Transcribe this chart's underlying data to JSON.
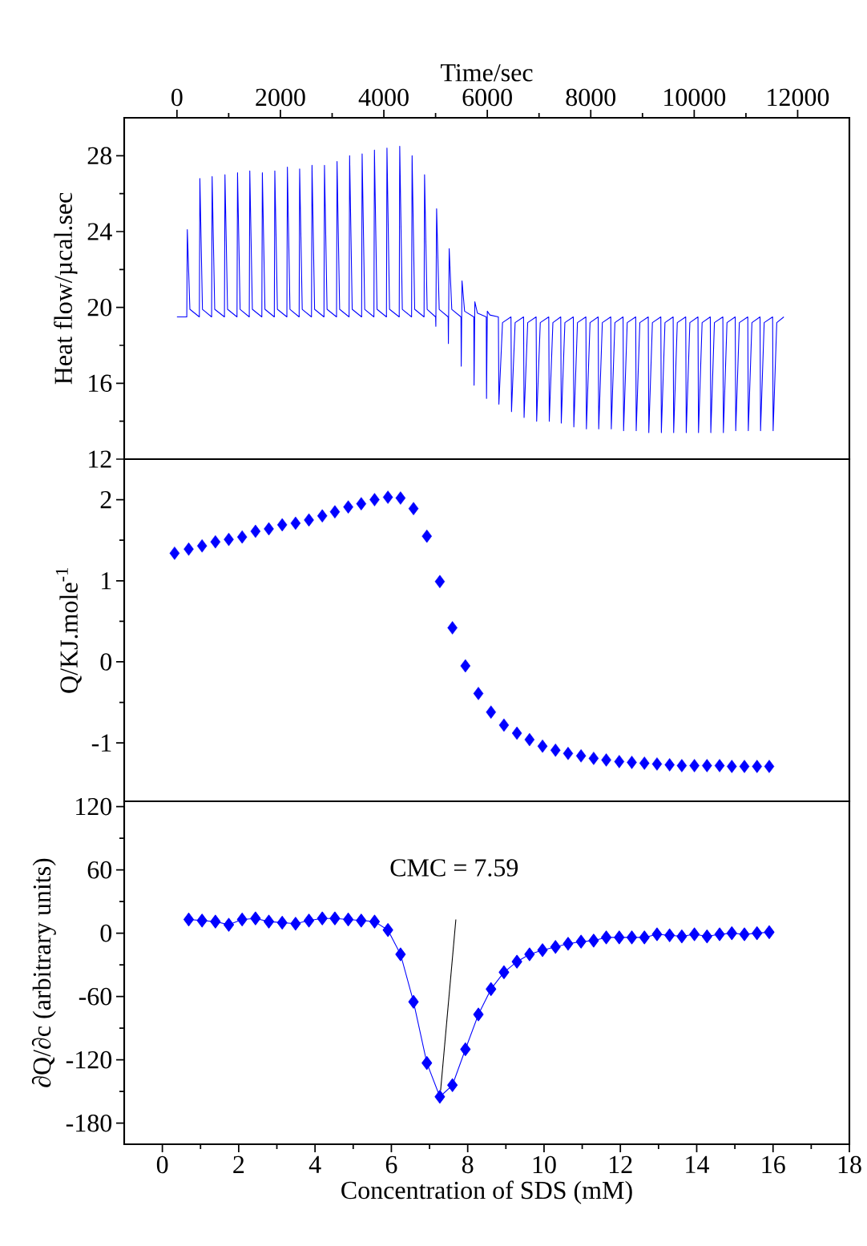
{
  "chart_data": [
    {
      "type": "line",
      "xlabel": "Time/sec",
      "ylabel": "Heat flow/µcal.sec",
      "xlim": [
        -1020,
        13000
      ],
      "xticks": [
        0,
        2000,
        4000,
        6000,
        8000,
        10000,
        12000
      ],
      "ylim": [
        12,
        30
      ],
      "yticks": [
        12,
        16,
        20,
        24,
        28
      ],
      "series": [
        {
          "color": "#0000ff",
          "x": [
            0,
            190,
            200,
            250,
            433,
            443,
            493,
            670,
            680,
            730,
            918,
            928,
            978,
            1161,
            1171,
            1221,
            1398,
            1408,
            1458,
            1641,
            1651,
            1701,
            1882,
            1892,
            1942,
            2125,
            2135,
            2185,
            2362,
            2372,
            2422,
            2601,
            2611,
            2661,
            2842,
            2852,
            2902,
            3085,
            3095,
            3145,
            3328,
            3338,
            3388,
            3570,
            3580,
            3630,
            3808,
            3818,
            3868,
            4050,
            4060,
            4110,
            4297,
            4307,
            4357,
            4536,
            4546,
            4596,
            4777,
            4787,
            4837,
            5000,
            5005,
            5020,
            5070,
            5243,
            5248,
            5263,
            5313,
            5491,
            5496,
            5511,
            5561,
            5739,
            5744,
            5759,
            5809,
            5980,
            5985,
            6000,
            6050,
            6214,
            6224,
            6294,
            6458,
            6468,
            6538,
            6701,
            6711,
            6781,
            6944,
            6954,
            7024,
            7188,
            7198,
            7268,
            7420,
            7430,
            7500,
            7663,
            7673,
            7743,
            7906,
            7916,
            7986,
            8144,
            8154,
            8224,
            8387,
            8397,
            8467,
            8625,
            8635,
            8705,
            8869,
            8879,
            8949,
            9112,
            9122,
            9192,
            9355,
            9365,
            9435,
            9593,
            9603,
            9673,
            9836,
            9846,
            9916,
            10073,
            10083,
            10153,
            10311,
            10321,
            10391,
            10554,
            10564,
            10634,
            10793,
            10803,
            10873,
            11036,
            11046,
            11116,
            11273,
            11283,
            11353,
            11516,
            11526,
            11596,
            11733
          ],
          "values": [
            19.5,
            19.5,
            24.1,
            19.9,
            19.5,
            26.8,
            19.9,
            19.5,
            26.9,
            19.9,
            19.5,
            27.0,
            19.9,
            19.5,
            27.1,
            19.9,
            19.5,
            27.2,
            19.9,
            19.5,
            27.1,
            19.9,
            19.5,
            27.2,
            19.9,
            19.5,
            27.4,
            19.9,
            19.5,
            27.3,
            19.9,
            19.5,
            27.5,
            19.9,
            19.5,
            27.5,
            19.9,
            19.5,
            27.7,
            19.9,
            19.5,
            28.0,
            19.9,
            19.5,
            28.1,
            19.9,
            19.5,
            28.3,
            19.9,
            19.5,
            28.4,
            19.9,
            19.5,
            28.5,
            19.9,
            19.5,
            28.0,
            19.9,
            19.5,
            27.0,
            19.9,
            19.5,
            19.0,
            25.2,
            19.9,
            19.5,
            18.1,
            23.1,
            19.9,
            19.5,
            16.9,
            21.4,
            19.8,
            19.5,
            15.9,
            20.3,
            19.7,
            19.5,
            15.2,
            19.8,
            19.6,
            19.5,
            14.9,
            19.2,
            19.5,
            14.5,
            19.2,
            19.5,
            14.2,
            19.2,
            19.5,
            14.0,
            19.2,
            19.5,
            14.0,
            19.2,
            19.5,
            13.9,
            19.2,
            19.5,
            13.7,
            19.2,
            19.5,
            13.6,
            19.2,
            19.5,
            13.6,
            19.2,
            19.5,
            13.6,
            19.2,
            19.5,
            13.5,
            19.2,
            19.5,
            13.5,
            19.2,
            19.5,
            13.4,
            19.2,
            19.5,
            13.4,
            19.2,
            19.5,
            13.4,
            19.2,
            19.5,
            13.4,
            19.2,
            19.5,
            13.4,
            19.2,
            19.5,
            13.4,
            19.2,
            19.5,
            13.4,
            19.2,
            19.5,
            13.5,
            19.2,
            19.5,
            13.5,
            19.2,
            19.5,
            13.5,
            19.2,
            19.5,
            13.5,
            19.2,
            19.5
          ]
        }
      ]
    },
    {
      "type": "scatter",
      "ylabel": "Q/KJ.mole$^{-1}$",
      "xlim": [
        -1,
        18
      ],
      "ylim": [
        -1.72,
        2.5
      ],
      "yticks": [
        -1,
        0,
        1,
        2
      ],
      "tick_labels": "y",
      "marker": "diamond",
      "series": [
        {
          "color": "#0000ff",
          "x": [
            0.32,
            0.69,
            1.04,
            1.39,
            1.74,
            2.09,
            2.44,
            2.79,
            3.14,
            3.49,
            3.84,
            4.19,
            4.52,
            4.87,
            5.21,
            5.56,
            5.91,
            6.24,
            6.58,
            6.93,
            7.27,
            7.6,
            7.94,
            8.28,
            8.61,
            8.95,
            9.29,
            9.62,
            9.96,
            10.3,
            10.63,
            10.97,
            11.3,
            11.63,
            11.97,
            12.3,
            12.63,
            12.96,
            13.29,
            13.61,
            13.94,
            14.27,
            14.6,
            14.92,
            15.25,
            15.58,
            15.9
          ],
          "values": [
            1.34,
            1.39,
            1.43,
            1.48,
            1.51,
            1.54,
            1.61,
            1.64,
            1.69,
            1.71,
            1.75,
            1.8,
            1.85,
            1.91,
            1.95,
            2.0,
            2.03,
            2.02,
            1.89,
            1.55,
            0.99,
            0.42,
            -0.05,
            -0.39,
            -0.62,
            -0.78,
            -0.88,
            -0.96,
            -1.04,
            -1.09,
            -1.13,
            -1.16,
            -1.19,
            -1.21,
            -1.23,
            -1.24,
            -1.25,
            -1.26,
            -1.27,
            -1.28,
            -1.28,
            -1.28,
            -1.28,
            -1.29,
            -1.29,
            -1.29,
            -1.29
          ]
        }
      ]
    },
    {
      "type": "scatter",
      "xlabel": "Concentration of SDS (mM)",
      "ylabel": "∂Q/∂c (arbitrary units)",
      "xlim": [
        -1,
        18
      ],
      "xticks": [
        0,
        2,
        4,
        6,
        8,
        10,
        12,
        14,
        16,
        18
      ],
      "ylim": [
        -200,
        125
      ],
      "yticks": [
        -180,
        -120,
        -60,
        0,
        60,
        120
      ],
      "annotations": [
        "CMC = 7.59"
      ],
      "series": [
        {
          "type": "line",
          "color": "#0000ff",
          "marker": "diamond",
          "x": [
            0.69,
            1.04,
            1.39,
            1.74,
            2.09,
            2.44,
            2.79,
            3.14,
            3.49,
            3.84,
            4.19,
            4.52,
            4.87,
            5.21,
            5.56,
            5.91,
            6.24,
            6.58,
            6.93,
            7.27,
            7.6,
            7.94,
            8.28,
            8.61,
            8.95,
            9.29,
            9.62,
            9.96,
            10.3,
            10.63,
            10.97,
            11.3,
            11.63,
            11.97,
            12.3,
            12.63,
            12.96,
            13.29,
            13.61,
            13.94,
            14.27,
            14.6,
            14.92,
            15.25,
            15.58,
            15.9
          ],
          "values": [
            13,
            12,
            11,
            8,
            13,
            14,
            11,
            10,
            9,
            12,
            14,
            14,
            13,
            12,
            11,
            3,
            -20,
            -65,
            -123,
            -155,
            -144,
            -110,
            -77,
            -53,
            -37,
            -27,
            -20,
            -16,
            -13,
            -10,
            -8,
            -7,
            -4,
            -4,
            -4,
            -4,
            -1,
            -2,
            -3,
            -1,
            -3,
            -1,
            0,
            -1,
            0,
            1
          ]
        },
        {
          "type": "line",
          "color": "#000000",
          "marker": "none",
          "x": [
            7.29,
            7.69
          ],
          "values": [
            -149,
            13
          ]
        }
      ]
    }
  ]
}
